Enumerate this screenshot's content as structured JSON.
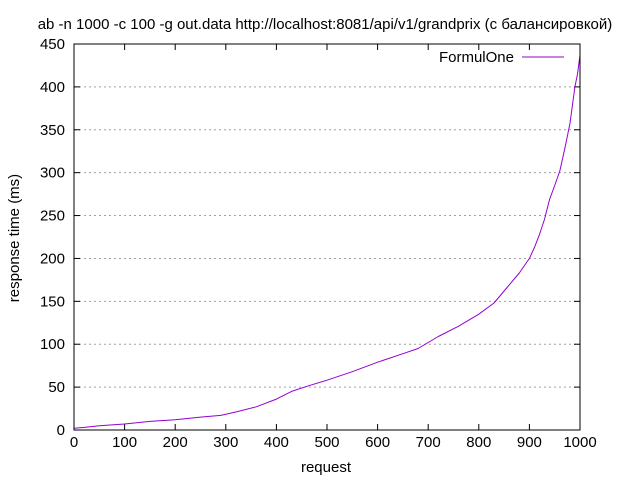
{
  "chart_data": {
    "type": "line",
    "title": "ab -n 1000 -c 100 -g out.data http://localhost:8081/api/v1/grandprix (с балансировкой)",
    "xlabel": "request",
    "ylabel": "response time (ms)",
    "xlim": [
      0,
      1000
    ],
    "ylim": [
      0,
      450
    ],
    "x_ticks": [
      "0",
      "100",
      "200",
      "300",
      "400",
      "500",
      "600",
      "700",
      "800",
      "900",
      "1000"
    ],
    "y_ticks": [
      "0",
      "50",
      "100",
      "150",
      "200",
      "250",
      "300",
      "350",
      "400",
      "450"
    ],
    "grid": true,
    "legend_position": "top-right",
    "series": [
      {
        "name": "FormulOne",
        "color": "#9400d3",
        "x": [
          0,
          20,
          50,
          100,
          150,
          200,
          250,
          290,
          320,
          360,
          400,
          430,
          460,
          500,
          550,
          600,
          650,
          680,
          700,
          720,
          760,
          800,
          830,
          850,
          870,
          880,
          900,
          910,
          920,
          930,
          940,
          950,
          960,
          970,
          980,
          990,
          995,
          1000
        ],
        "y": [
          2,
          3,
          5,
          7,
          10,
          12,
          15,
          17,
          21,
          27,
          36,
          45,
          51,
          58,
          68,
          79,
          89,
          95,
          102,
          109,
          121,
          135,
          148,
          162,
          176,
          183,
          200,
          213,
          228,
          246,
          269,
          285,
          302,
          328,
          357,
          400,
          415,
          437
        ]
      }
    ]
  }
}
